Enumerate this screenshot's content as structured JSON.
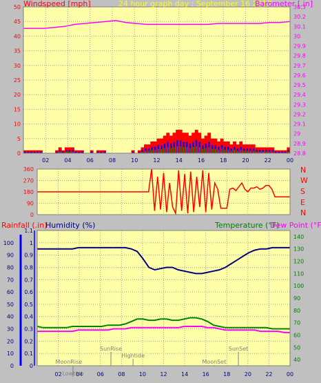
{
  "header": {
    "windspeed_label": "Windspeed [mph]",
    "title": "24 hour graph day : September 16 2017",
    "barometer_label": "Barometer [.in]"
  },
  "lower_header": {
    "rainfall_label": "Rainfall (.in)",
    "humidity_label": "Humidity (%)",
    "temperature_label": "Temperature (°F)",
    "dewpoint_label": "Dew Point (°F)"
  },
  "colors": {
    "background": "#c0c0c0",
    "plot_background": "#ffffa8",
    "windspeed": "#ff0000",
    "barometer": "#ff00ff",
    "humidity": "#000080",
    "temperature": "#008000",
    "dewpoint": "#ff00ff",
    "wind_direction": "#ff0000",
    "wind_blue": "#0000ff",
    "wind_green": "#00a000"
  },
  "chart_data": [
    {
      "type": "area",
      "name": "wind-barometer",
      "x_ticks": [
        "02",
        "04",
        "06",
        "08",
        "10",
        "12",
        "14",
        "16",
        "18",
        "20",
        "22",
        "00"
      ],
      "y_left_ticks": [
        "0",
        "5",
        "10",
        "15",
        "20",
        "25",
        "30",
        "35",
        "40",
        "45",
        "50"
      ],
      "y_left_range": [
        0,
        50
      ],
      "y_right_ticks": [
        "28.8",
        "28.9",
        "29",
        "29.1",
        "29.2",
        "29.3",
        "29.4",
        "29.5",
        "29.6",
        "29.7",
        "29.8",
        "29.9",
        "30",
        "30.1",
        "30.2",
        "30.3"
      ],
      "y_right_range": [
        28.8,
        30.3
      ],
      "windspeed": [
        1,
        1,
        1,
        1,
        1,
        1,
        0,
        0,
        0,
        0,
        1,
        2,
        1,
        2,
        2,
        2,
        1,
        1,
        1,
        0,
        0,
        1,
        0,
        1,
        1,
        1,
        0,
        0,
        0,
        0,
        0,
        0,
        0,
        0,
        1,
        0,
        1,
        2,
        3,
        3,
        4,
        4,
        5,
        5,
        6,
        7,
        6,
        7,
        8,
        8,
        7,
        7,
        6,
        7,
        8,
        7,
        5,
        6,
        7,
        5,
        5,
        4,
        5,
        4,
        4,
        3,
        4,
        3,
        4,
        3,
        3,
        3,
        3,
        2,
        2,
        2,
        2,
        2,
        2,
        1,
        1,
        1,
        1,
        2
      ],
      "barometer": [
        30.08,
        30.08,
        30.08,
        30.09,
        30.1,
        30.12,
        30.13,
        30.14,
        30.15,
        30.16,
        30.14,
        30.13,
        30.12,
        30.12,
        30.12,
        30.12,
        30.12,
        30.12,
        30.12,
        30.13,
        30.13,
        30.13,
        30.13,
        30.13,
        30.14,
        30.14,
        30.15
      ]
    },
    {
      "type": "line",
      "name": "wind-direction",
      "y_ticks": [
        "0",
        "90",
        "180",
        "270",
        "360"
      ],
      "y_range": [
        0,
        360
      ],
      "compass_labels": [
        "N",
        "W",
        "S",
        "E",
        "N"
      ],
      "direction": [
        180,
        180,
        180,
        180,
        180,
        180,
        180,
        180,
        180,
        180,
        180,
        180,
        180,
        180,
        180,
        180,
        180,
        180,
        180,
        180,
        180,
        180,
        180,
        180,
        180,
        180,
        180,
        180,
        180,
        180,
        180,
        180,
        180,
        180,
        180,
        180,
        180,
        180,
        360,
        30,
        300,
        40,
        330,
        20,
        250,
        60,
        10,
        350,
        30,
        320,
        10,
        340,
        20,
        300,
        60,
        350,
        20,
        330,
        40,
        250,
        200,
        50,
        50,
        50,
        200,
        210,
        190,
        220,
        250,
        200,
        180,
        210,
        210,
        220,
        200,
        210,
        230,
        230,
        200,
        140,
        140,
        140,
        140,
        140,
        140
      ]
    },
    {
      "type": "line",
      "name": "humidity-temperature",
      "y_left_ticks": [
        "0",
        "0.1",
        "0.2",
        "0.3",
        "0.4",
        "0.5",
        "0.6",
        "0.7",
        "0.8",
        "0.9",
        "1",
        "1.1"
      ],
      "y_left_range": [
        0,
        1.1
      ],
      "y_humidity_ticks": [
        "0",
        "10",
        "20",
        "30",
        "40",
        "50",
        "60",
        "70",
        "80",
        "90",
        "100"
      ],
      "y_right_ticks": [
        "40",
        "50",
        "60",
        "70",
        "80",
        "90",
        "100",
        "110",
        "120",
        "130",
        "140"
      ],
      "y_right_range": [
        35,
        145
      ],
      "humidity": [
        95,
        95,
        95,
        95,
        95,
        95,
        95,
        96,
        96,
        96,
        96,
        96,
        96,
        96,
        96,
        96,
        95,
        93,
        87,
        80,
        78,
        79,
        80,
        80,
        78,
        77,
        76,
        75,
        75,
        76,
        77,
        78,
        80,
        83,
        86,
        89,
        92,
        94,
        95,
        95,
        96,
        96,
        96,
        96
      ],
      "temperature": [
        67,
        66,
        66,
        66,
        66,
        66,
        67,
        67,
        67,
        67,
        67,
        67,
        68,
        68,
        68,
        69,
        71,
        73,
        73,
        72,
        72,
        73,
        73,
        72,
        72,
        73,
        74,
        74,
        73,
        71,
        68,
        67,
        66,
        66,
        66,
        66,
        66,
        66,
        66,
        66,
        65,
        65,
        65,
        65
      ],
      "dewpoint": [
        63,
        63,
        63,
        63,
        63,
        63,
        63,
        64,
        64,
        64,
        64,
        64,
        64,
        65,
        65,
        65,
        66,
        66,
        66,
        66,
        66,
        66,
        66,
        66,
        66,
        67,
        67,
        67,
        67,
        66,
        66,
        65,
        64,
        64,
        64,
        64,
        64,
        64,
        63,
        63,
        63,
        63,
        62,
        62
      ],
      "annotations": [
        "SunRise",
        "Hightide",
        "SunSet",
        "MoonRise",
        "MoonSet",
        "Lowtide"
      ]
    }
  ]
}
